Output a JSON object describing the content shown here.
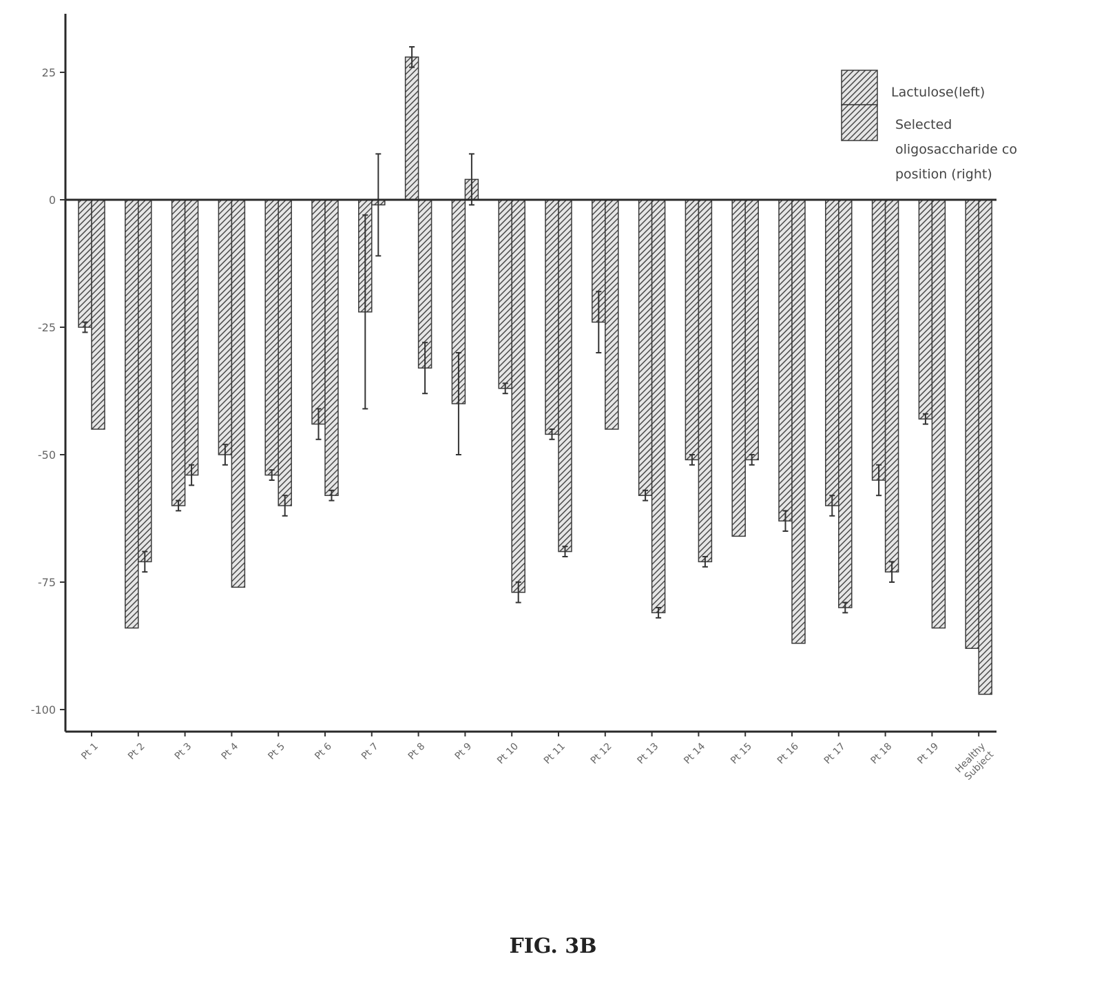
{
  "caption": "FIG. 3B",
  "chart_data": {
    "type": "bar",
    "title": "",
    "xlabel": "",
    "ylabel": "",
    "ylim": [
      -105,
      35
    ],
    "yticks": [
      25,
      0,
      -25,
      -50,
      -75,
      -100
    ],
    "grid": false,
    "legend_position": "top-right",
    "categories": [
      "Pt 1",
      "Pt 2",
      "Pt 3",
      "Pt 4",
      "Pt 5",
      "Pt 6",
      "Pt 7",
      "Pt 8",
      "Pt 9",
      "Pt 10",
      "Pt 11",
      "Pt 12",
      "Pt 13",
      "Pt 14",
      "Pt 15",
      "Pt 16",
      "Pt 17",
      "Pt 18",
      "Pt 19",
      "Healthy Subject"
    ],
    "series": [
      {
        "name": "Lactulose(left)",
        "values": [
          -25,
          -84,
          -60,
          -50,
          -54,
          -44,
          -22,
          28,
          -40,
          -37,
          -46,
          -24,
          -58,
          -51,
          -66,
          -63,
          -60,
          -55,
          -43,
          -88
        ],
        "errors": [
          1,
          0,
          1,
          2,
          1,
          3,
          19,
          2,
          10,
          1,
          1,
          6,
          1,
          1,
          0,
          2,
          2,
          3,
          1,
          0
        ]
      },
      {
        "name": "Selected oligosaccharide composition (right)",
        "values": [
          -45,
          -71,
          -54,
          -76,
          -60,
          -58,
          -1,
          -33,
          4,
          -77,
          -69,
          -45,
          -81,
          -71,
          -51,
          -87,
          -80,
          -73,
          -84,
          -97
        ],
        "errors": [
          0,
          2,
          2,
          0,
          2,
          1,
          10,
          5,
          5,
          2,
          1,
          0,
          1,
          1,
          1,
          0,
          1,
          2,
          0,
          0
        ]
      }
    ]
  }
}
